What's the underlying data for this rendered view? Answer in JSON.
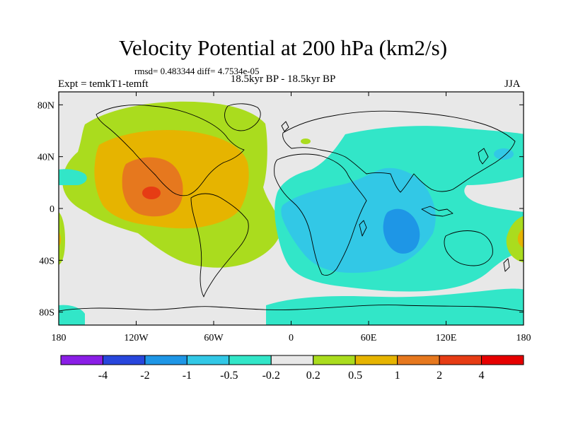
{
  "title": "Velocity Potential at 200 hPa (km2/s)",
  "stats": "rmsd= 0.483344 diff= 4.7534e-05",
  "period": "18.5kyr BP - 18.5kyr BP",
  "experiment": "Expt = temkT1-temft",
  "season": "JJA",
  "lat_ticks": [
    "80N",
    "40N",
    "0",
    "40S",
    "80S"
  ],
  "lat_values": [
    80,
    40,
    0,
    -40,
    -80
  ],
  "lon_ticks": [
    "180",
    "120W",
    "60W",
    "0",
    "60E",
    "120E",
    "180"
  ],
  "lon_values": [
    -180,
    -120,
    -60,
    0,
    60,
    120,
    180
  ],
  "colorbar": {
    "labels": [
      "-4",
      "-2",
      "-1",
      "-0.5",
      "-0.2",
      "0.2",
      "0.5",
      "1",
      "2",
      "4"
    ],
    "colors": [
      "#8a1ee6",
      "#2846dc",
      "#1e96e6",
      "#32c8e6",
      "#32e6c8",
      "#e8e8e8",
      "#aadc1e",
      "#e6b400",
      "#e6781e",
      "#e63c14",
      "#e60000"
    ]
  },
  "field_colors": {
    "neutral": "#e8e8e8",
    "pos_0_2": "#aadc1e",
    "pos_0_5": "#e6b400",
    "pos_1": "#e6781e",
    "pos_2": "#e63c14",
    "neg_0_2": "#32e6c8",
    "neg_0_5": "#32c8e6",
    "neg_1": "#1e96e6"
  }
}
